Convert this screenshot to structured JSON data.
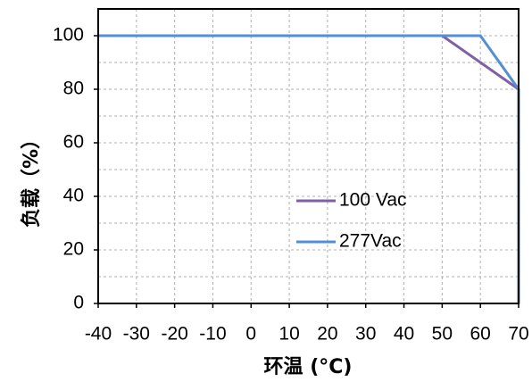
{
  "chart_data": {
    "type": "line",
    "title": "",
    "xlabel": "环温 (°C)",
    "ylabel": "负载（%）",
    "xlim": [
      -40,
      70
    ],
    "ylim": [
      0,
      110
    ],
    "x_ticks": [
      -40,
      -30,
      -20,
      -10,
      0,
      10,
      20,
      30,
      40,
      50,
      60,
      70
    ],
    "y_ticks": [
      0,
      20,
      40,
      60,
      80,
      100
    ],
    "x_tick_labels": [
      "-40",
      "-30",
      "-20",
      "-10",
      "0",
      "10",
      "20",
      "30",
      "40",
      "50",
      "60",
      "70"
    ],
    "y_tick_labels": [
      "0",
      "20",
      "40",
      "60",
      "80",
      "100"
    ],
    "grid": true,
    "legend_position": "lower-right",
    "series": [
      {
        "name": "100 Vac",
        "color": "#7f5fa8",
        "points": [
          [
            50,
            100
          ],
          [
            70,
            80
          ]
        ]
      },
      {
        "name": "277Vac",
        "color": "#4f8fdc",
        "points": [
          [
            -40,
            100
          ],
          [
            60,
            100
          ],
          [
            70,
            80
          ],
          [
            70,
            0
          ]
        ]
      }
    ]
  }
}
